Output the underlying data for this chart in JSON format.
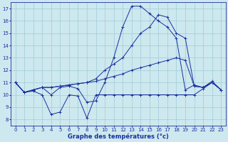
{
  "xlabel": "Graphe des températures (°c)",
  "bg_color": "#cde8ee",
  "line_color": "#1a2fa0",
  "grid_color": "#9fccd8",
  "xlim": [
    -0.5,
    23.5
  ],
  "ylim": [
    7.5,
    17.5
  ],
  "xticks": [
    0,
    1,
    2,
    3,
    4,
    5,
    6,
    7,
    8,
    9,
    10,
    11,
    12,
    13,
    14,
    15,
    16,
    17,
    18,
    19,
    20,
    21,
    22,
    23
  ],
  "yticks": [
    8,
    9,
    10,
    11,
    12,
    13,
    14,
    15,
    16,
    17
  ],
  "series": [
    {
      "x": [
        0,
        1,
        2,
        3,
        4,
        5,
        6,
        7,
        8,
        9,
        10,
        11,
        12,
        13,
        14,
        15,
        16,
        17,
        18,
        19,
        20,
        21,
        22,
        23
      ],
      "y": [
        11.0,
        10.2,
        10.3,
        10.0,
        8.4,
        8.6,
        10.0,
        9.9,
        8.1,
        10.0,
        10.0,
        10.0,
        10.0,
        10.0,
        10.0,
        10.0,
        10.0,
        10.0,
        10.0,
        10.0,
        10.0,
        10.5,
        11.0,
        10.4
      ]
    },
    {
      "x": [
        0,
        1,
        2,
        3,
        4,
        5,
        6,
        7,
        8,
        9,
        10,
        11,
        12,
        13,
        14,
        15,
        16,
        17,
        18,
        19,
        20,
        21,
        22,
        23
      ],
      "y": [
        11.0,
        10.2,
        10.4,
        10.6,
        10.6,
        10.7,
        10.8,
        10.9,
        11.0,
        11.1,
        11.3,
        11.5,
        11.7,
        12.0,
        12.2,
        12.4,
        12.6,
        12.8,
        13.0,
        12.8,
        10.7,
        10.6,
        11.0,
        10.4
      ]
    },
    {
      "x": [
        0,
        1,
        2,
        3,
        4,
        5,
        6,
        7,
        8,
        9,
        10,
        11,
        12,
        13,
        14,
        15,
        16,
        17,
        18,
        19,
        20,
        21,
        22,
        23
      ],
      "y": [
        11.0,
        10.2,
        10.4,
        10.6,
        10.6,
        10.7,
        10.8,
        10.9,
        11.0,
        11.3,
        12.0,
        12.5,
        13.0,
        14.0,
        15.0,
        15.5,
        16.5,
        16.3,
        15.0,
        14.6,
        10.7,
        10.6,
        11.0,
        10.4
      ]
    },
    {
      "x": [
        0,
        1,
        2,
        3,
        4,
        5,
        6,
        7,
        8,
        9,
        10,
        11,
        12,
        13,
        14,
        15,
        16,
        17,
        18,
        19,
        20,
        21,
        22,
        23
      ],
      "y": [
        11.0,
        10.2,
        10.4,
        10.6,
        10.0,
        10.6,
        10.7,
        10.5,
        9.4,
        9.5,
        11.0,
        13.0,
        15.5,
        17.2,
        17.2,
        16.6,
        16.0,
        15.5,
        14.6,
        10.4,
        10.8,
        10.6,
        11.1,
        10.4
      ]
    }
  ]
}
